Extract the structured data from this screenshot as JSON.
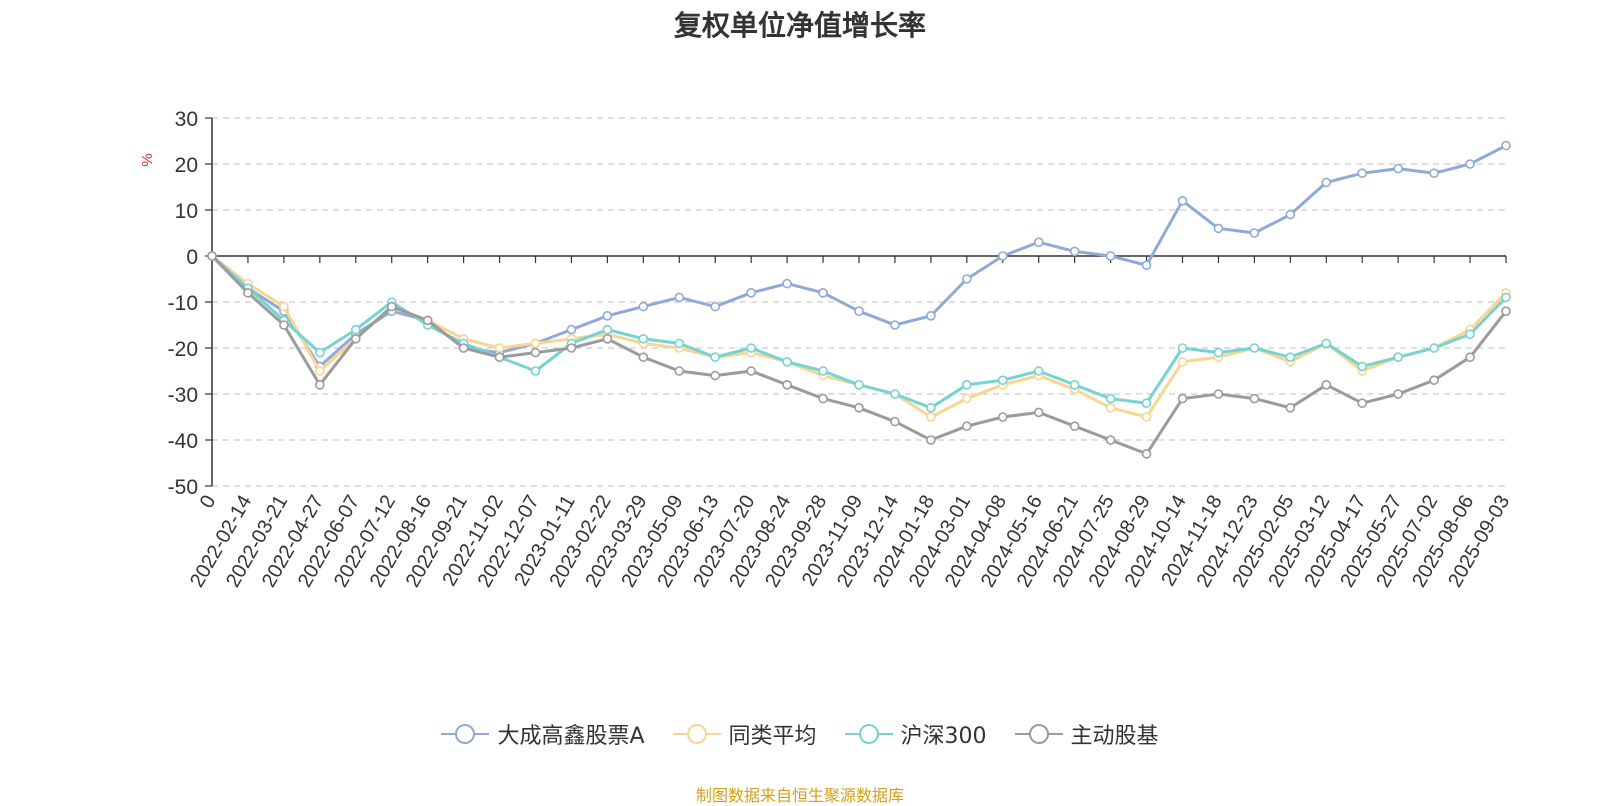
{
  "chart_data": {
    "type": "line",
    "title": "复权单位净值增长率",
    "ylabel": "%",
    "ylim": [
      -50,
      30
    ],
    "yticks": [
      30,
      20,
      10,
      0,
      -10,
      -20,
      -30,
      -40,
      -50
    ],
    "x_tick_labels": [
      "0",
      "2022-02-14",
      "2022-03-21",
      "2022-04-27",
      "2022-06-07",
      "2022-07-12",
      "2022-08-16",
      "2022-09-21",
      "2022-11-02",
      "2022-12-07",
      "2023-01-11",
      "2023-02-22",
      "2023-03-29",
      "2023-05-09",
      "2023-06-13",
      "2023-07-20",
      "2023-08-24",
      "2023-09-28",
      "2023-11-09",
      "2023-12-14",
      "2024-01-18",
      "2024-03-01",
      "2024-04-08",
      "2024-05-16",
      "2024-06-21",
      "2024-07-25",
      "2024-08-29",
      "2024-10-14",
      "2024-11-18",
      "2024-12-23",
      "2025-02-05",
      "2025-03-12",
      "2025-04-17",
      "2025-05-27",
      "2025-07-02",
      "2025-08-06",
      "2025-09-03"
    ],
    "grid": "horizontal dashed",
    "legend_position": "bottom",
    "series": [
      {
        "name": "大成高鑫股票A",
        "color": "#8eaad8",
        "values": [
          0,
          -7,
          -12,
          -24,
          -17,
          -12,
          -14,
          -20,
          -21,
          -19,
          -16,
          -13,
          -11,
          -9,
          -11,
          -8,
          -6,
          -8,
          -12,
          -15,
          -13,
          -5,
          0,
          3,
          1,
          0,
          -2,
          12,
          6,
          5,
          9,
          16,
          18,
          19,
          18,
          20,
          24
        ]
      },
      {
        "name": "同类平均",
        "color": "#fad590",
        "values": [
          0,
          -6,
          -11,
          -25,
          -18,
          -11,
          -14,
          -18,
          -20,
          -19,
          -18,
          -17,
          -19,
          -20,
          -22,
          -21,
          -23,
          -26,
          -28,
          -30,
          -35,
          -31,
          -28,
          -26,
          -29,
          -33,
          -35,
          -23,
          -22,
          -20,
          -23,
          -19,
          -25,
          -22,
          -20,
          -16,
          -8
        ]
      },
      {
        "name": "沪深300",
        "color": "#76d3d3",
        "values": [
          0,
          -7,
          -14,
          -21,
          -16,
          -10,
          -15,
          -19,
          -22,
          -25,
          -19,
          -16,
          -18,
          -19,
          -22,
          -20,
          -23,
          -25,
          -28,
          -30,
          -33,
          -28,
          -27,
          -25,
          -28,
          -31,
          -32,
          -20,
          -21,
          -20,
          -22,
          -19,
          -24,
          -22,
          -20,
          -17,
          -9
        ]
      },
      {
        "name": "主动股基",
        "color": "#9b9b9b",
        "values": [
          0,
          -8,
          -15,
          -28,
          -18,
          -11,
          -14,
          -20,
          -22,
          -21,
          -20,
          -18,
          -22,
          -25,
          -26,
          -25,
          -28,
          -31,
          -33,
          -36,
          -40,
          -37,
          -35,
          -34,
          -37,
          -40,
          -43,
          -31,
          -30,
          -31,
          -33,
          -28,
          -32,
          -30,
          -27,
          -22,
          -12
        ]
      }
    ]
  },
  "source_note": "制图数据来自恒生聚源数据库"
}
